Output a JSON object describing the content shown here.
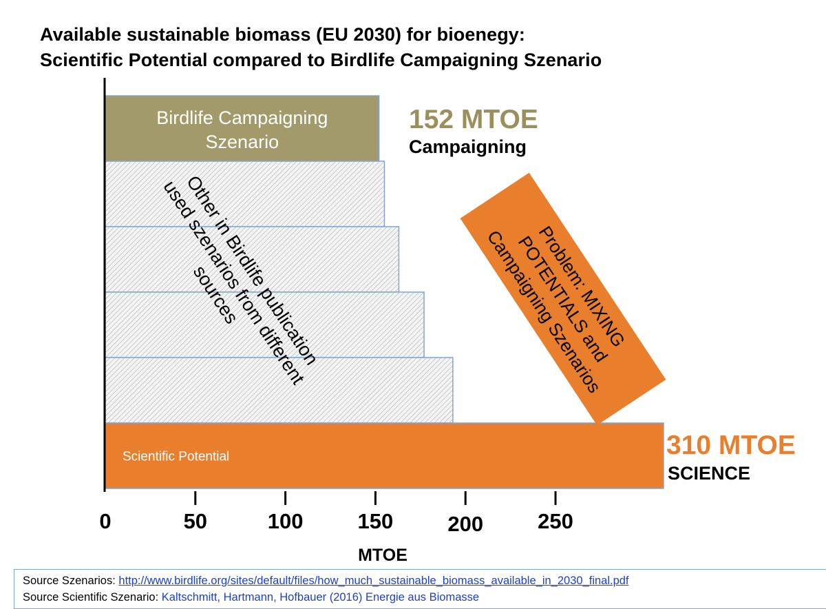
{
  "title_line1": "Available sustainable biomass (EU 2030) for bioenegy:",
  "title_line2": "Scientific Potential compared to Birdlife Campaigning Szenario",
  "chart_data": {
    "type": "bar",
    "orientation": "horizontal",
    "xlim": [
      0,
      310
    ],
    "xticks": [
      0,
      50,
      100,
      150,
      200,
      250
    ],
    "xlabel": "MTOE",
    "bars": [
      {
        "label_lines": [
          "Birdlife Campaigning",
          "Szenario"
        ],
        "value": 152,
        "style": "solid",
        "color": "#a39a6c"
      },
      {
        "label_lines": [],
        "value": 155,
        "style": "hatched"
      },
      {
        "label_lines": [],
        "value": 163,
        "style": "hatched"
      },
      {
        "label_lines": [],
        "value": 177,
        "style": "hatched"
      },
      {
        "label_lines": [],
        "value": 193,
        "style": "hatched"
      },
      {
        "label_lines": [
          "Scientific Potential"
        ],
        "value": 310,
        "style": "solid",
        "color": "#e97e2c"
      }
    ],
    "annotations": {
      "campaigning_value": "152 MTOE",
      "campaigning_label": "Campaigning",
      "science_value": "310 MTOE",
      "science_label": "SCIENCE",
      "other_lines": [
        "Other in Birdlife publication",
        "used szenarios from different",
        "sources"
      ],
      "problem_lines": [
        "Problem: MIXING",
        "POTENTIALS and",
        "Campaigning Szenarios"
      ]
    },
    "colors": {
      "campaigning_value": "#9b8f5c",
      "science_value": "#e97e2c",
      "problem_box": "#e97e2c"
    }
  },
  "source": {
    "line1_prefix": "Source Szenarios: ",
    "line1_link": "http://www.birdlife.org/sites/default/files/how_much_sustainable_biomass_available_in_2030_final.pdf",
    "line2_prefix": "Source Scientific Szenario: ",
    "line2_ref": "Kaltschmitt, Hartmann, Hofbauer (2016) Energie aus Biomasse"
  }
}
